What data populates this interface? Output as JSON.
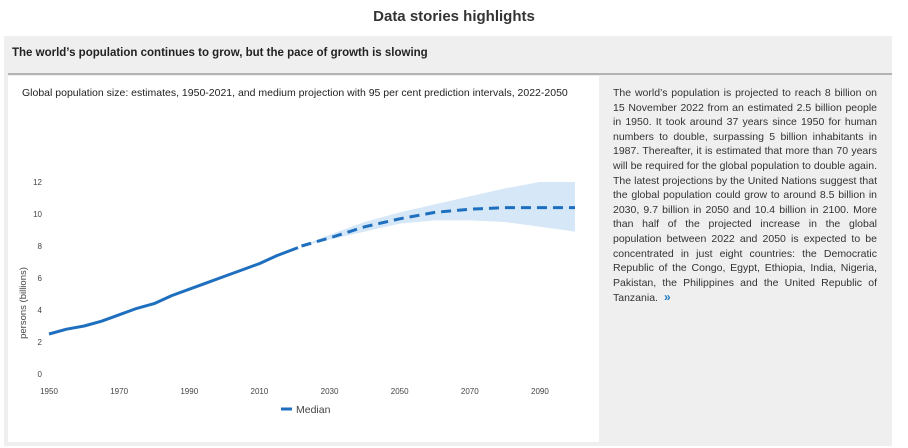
{
  "page": {
    "header": "Data stories highlights",
    "panel_title": "The world’s population continues to grow, but the pace of growth is slowing",
    "chart_caption": "Global population size: estimates, 1950-2021, and medium projection with 95 per cent prediction intervals, 2022-2050",
    "body_text": "The world’s population is projected to reach 8 billion on 15 November 2022 from an estimated 2.5 billion people in 1950. It took around 37 years since 1950 for human numbers to double, surpassing 5 billion inhabitants in 1987. Thereafter, it is estimated that more than 70 years will be required for the global population to double again. The latest projections by the United Nations suggest that the global population could grow to around 8.5 billion in 2030, 9.7 billion in 2050 and 10.4 billion in 2100. More than half of the projected increase in the global population between 2022 and 2050 is expected to be concentrated in just eight countries: the Democratic Republic of the Congo, Egypt, Ethiopia, India, Nigeria, Pakistan, the Philippines and the United Republic of Tanzania.",
    "more_link": "»"
  },
  "chart_data": {
    "type": "line",
    "title": "Global population size: estimates, 1950-2021, and medium projection with 95 per cent prediction intervals, 2022-2050",
    "xlabel": "",
    "ylabel": "persons (billions)",
    "xlim": [
      1950,
      2100
    ],
    "ylim": [
      0,
      12
    ],
    "x_ticks": [
      "1950",
      "1970",
      "1990",
      "2010",
      "2030",
      "2050",
      "2070",
      "2090"
    ],
    "y_ticks": [
      "0",
      "2",
      "4",
      "6",
      "8",
      "10",
      "12"
    ],
    "grid": false,
    "legend": "bottom",
    "legend_label": "Median",
    "colors": {
      "line": "#1f6fbf",
      "interval": "#d6e7f7"
    },
    "series": [
      {
        "name": "Median",
        "style": "solid",
        "x": [
          1950,
          1955,
          1960,
          1965,
          1970,
          1975,
          1980,
          1985,
          1990,
          1995,
          2000,
          2005,
          2010,
          2015,
          2021
        ],
        "y": [
          2.5,
          2.8,
          3.0,
          3.3,
          3.7,
          4.1,
          4.4,
          4.9,
          5.3,
          5.7,
          6.1,
          6.5,
          6.9,
          7.4,
          7.9
        ]
      },
      {
        "name": "Median",
        "style": "dashed",
        "x": [
          2022,
          2030,
          2040,
          2050,
          2060,
          2070,
          2080,
          2090,
          2100
        ],
        "y": [
          8.0,
          8.5,
          9.2,
          9.7,
          10.1,
          10.3,
          10.4,
          10.4,
          10.4
        ]
      }
    ],
    "interval": {
      "x": [
        2022,
        2030,
        2040,
        2050,
        2060,
        2070,
        2080,
        2090,
        2100
      ],
      "lower": [
        8.0,
        8.4,
        8.9,
        9.4,
        9.6,
        9.6,
        9.5,
        9.2,
        8.9
      ],
      "upper": [
        8.0,
        8.7,
        9.5,
        10.1,
        10.6,
        11.1,
        11.6,
        12.0,
        12.0
      ]
    }
  }
}
